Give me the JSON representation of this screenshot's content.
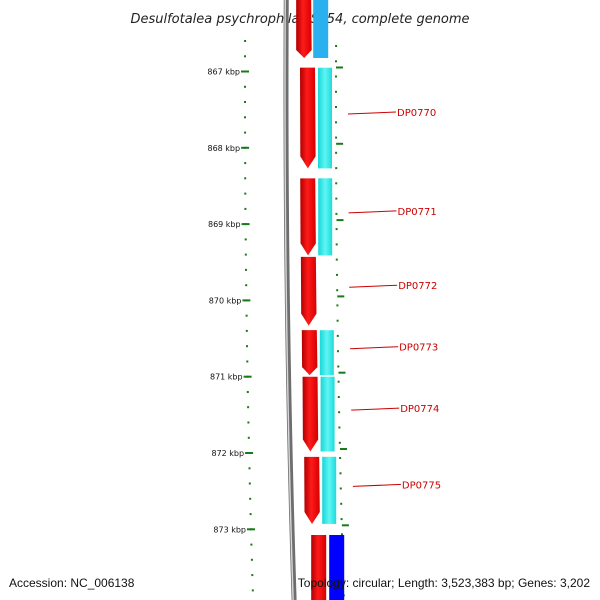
{
  "title": "Desulfotalea psychrophila LSv54, complete genome",
  "ticks": [
    {
      "label": "867 kbp",
      "kbp": 867
    },
    {
      "label": "868 kbp",
      "kbp": 868
    },
    {
      "label": "869 kbp",
      "kbp": 869
    },
    {
      "label": "870 kbp",
      "kbp": 870
    },
    {
      "label": "871 kbp",
      "kbp": 871
    },
    {
      "label": "872 kbp",
      "kbp": 872
    },
    {
      "label": "873 kbp",
      "kbp": 873
    }
  ],
  "genes": [
    {
      "label": "DP0770",
      "start_kbp": 866.95,
      "end_kbp": 868.27
    },
    {
      "label": "DP0771",
      "start_kbp": 868.4,
      "end_kbp": 869.41
    },
    {
      "label": "DP0772",
      "start_kbp": 869.43,
      "end_kbp": 870.33
    },
    {
      "label": "DP0773",
      "start_kbp": 870.39,
      "end_kbp": 870.98
    },
    {
      "label": "DP0774",
      "start_kbp": 871.0,
      "end_kbp": 871.98
    },
    {
      "label": "DP0775",
      "start_kbp": 872.05,
      "end_kbp": 872.93
    }
  ],
  "colors": {
    "cds": "#ff0000",
    "feature": "#00ffff",
    "feature_top": "#2ab0ee",
    "feature_bottom": "#0000ff",
    "backbone": "#888888",
    "tick": "#1a7a1a",
    "label": "#cc0000"
  },
  "footer": {
    "accession": "Accession: NC_006138",
    "topology": "Topology: circular; Length: 3,523,383 bp; Genes: 3,202"
  }
}
